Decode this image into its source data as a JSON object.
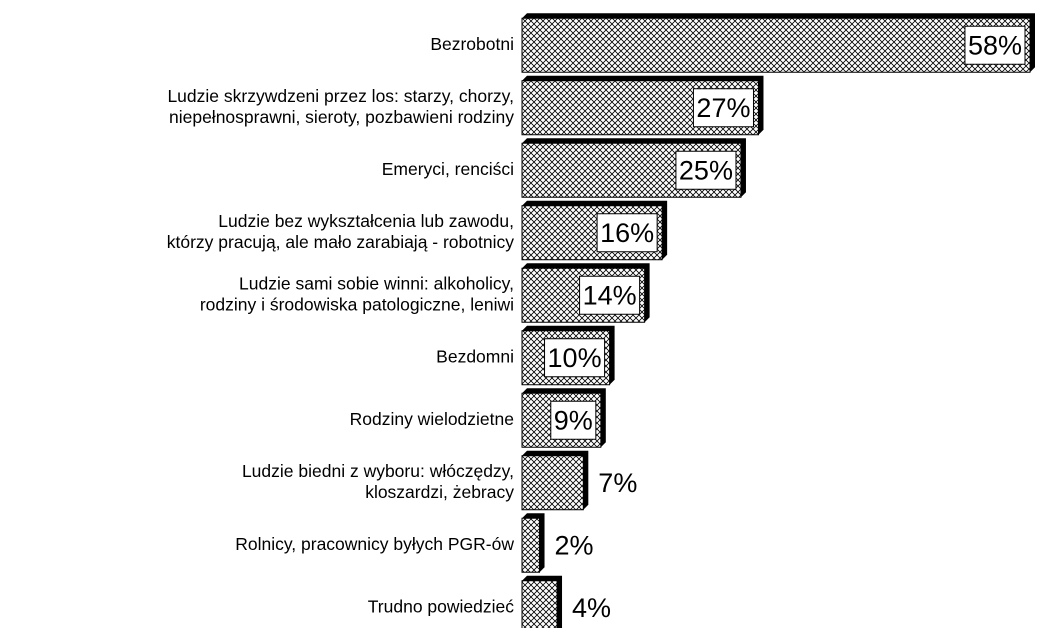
{
  "chart_data": {
    "type": "bar",
    "orientation": "horizontal",
    "categories": [
      [
        "Bezrobotni"
      ],
      [
        "Ludzie skrzywdzeni przez los: starzy, chorzy,",
        "niepełnosprawni, sieroty, pozbawieni rodziny"
      ],
      [
        "Emeryci, renciści"
      ],
      [
        "Ludzie bez wykształcenia lub zawodu,",
        "którzy pracują, ale mało zarabiają - robotnicy"
      ],
      [
        "Ludzie sami sobie winni: alkoholicy,",
        "rodziny i środowiska patologiczne, leniwi"
      ],
      [
        "Bezdomni"
      ],
      [
        "Rodziny wielodzietne"
      ],
      [
        "Ludzie biedni z wyboru: włóczędzy,",
        "kloszardzi, żebracy"
      ],
      [
        "Rolnicy, pracownicy byłych PGR-ów"
      ],
      [
        "Trudno powiedzieć"
      ]
    ],
    "values": [
      58,
      27,
      25,
      16,
      14,
      10,
      9,
      7,
      2,
      4
    ],
    "value_labels": [
      "58%",
      "27%",
      "25%",
      "16%",
      "14%",
      "10%",
      "9%",
      "7%",
      "2%",
      "4%"
    ],
    "xlim": [
      0,
      58
    ],
    "color": "#000000"
  }
}
